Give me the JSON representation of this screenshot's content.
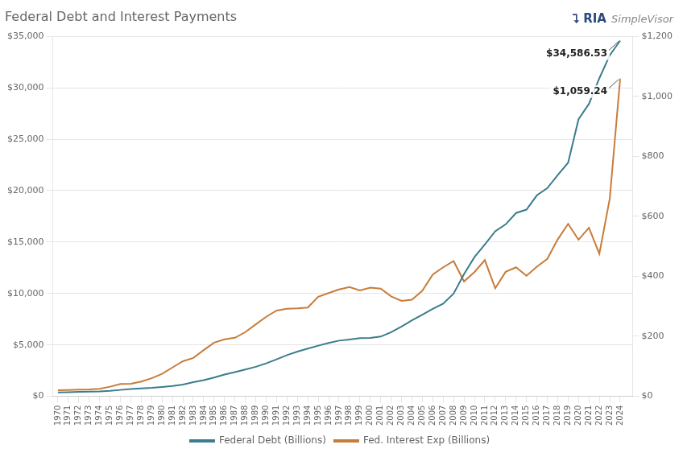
{
  "chart_data": {
    "type": "line",
    "title": "Federal Debt and Interest Payments",
    "x": [
      1970,
      1971,
      1972,
      1973,
      1974,
      1975,
      1976,
      1977,
      1978,
      1979,
      1980,
      1981,
      1982,
      1983,
      1984,
      1985,
      1986,
      1987,
      1988,
      1989,
      1990,
      1991,
      1992,
      1993,
      1994,
      1995,
      1996,
      1997,
      1998,
      1999,
      2000,
      2001,
      2002,
      2003,
      2004,
      2005,
      2006,
      2007,
      2008,
      2009,
      2010,
      2011,
      2012,
      2013,
      2014,
      2015,
      2016,
      2017,
      2018,
      2019,
      2020,
      2021,
      2022,
      2023,
      2024
    ],
    "series": [
      {
        "name": "Federal Debt (Billions)",
        "color": "#3a7d8c",
        "axis": "y",
        "values": [
          370,
          398,
          427,
          458,
          474,
          533,
          620,
          699,
          772,
          828,
          908,
          994,
          1137,
          1371,
          1564,
          1817,
          2120,
          2346,
          2601,
          2868,
          3206,
          3598,
          4002,
          4351,
          4643,
          4921,
          5181,
          5413,
          5526,
          5656,
          5674,
          5807,
          6228,
          6783,
          7379,
          7933,
          8507,
          9008,
          9986,
          11876,
          13528,
          14764,
          16051,
          16719,
          17824,
          18151,
          19540,
          20245,
          21516,
          22719,
          26945,
          28429,
          30928,
          33167,
          34587
        ]
      },
      {
        "name": "Fed. Interest Exp (Billions)",
        "color": "#c87c3a",
        "axis": "y2",
        "values": [
          20,
          21,
          22,
          23,
          25,
          32,
          41,
          42,
          49,
          60,
          75,
          96,
          117,
          128,
          154,
          179,
          190,
          195,
          214,
          240,
          265,
          286,
          292,
          293,
          296,
          332,
          344,
          356,
          364,
          353,
          362,
          359,
          333,
          318,
          322,
          352,
          406,
          430,
          451,
          383,
          414,
          454,
          360,
          415,
          430,
          402,
          432,
          458,
          523,
          575,
          522,
          562,
          475,
          659,
          1059
        ]
      }
    ],
    "xlim": [
      1969.5,
      2025.2
    ],
    "xticks": [
      1970,
      1971,
      1972,
      1973,
      1974,
      1975,
      1976,
      1977,
      1978,
      1979,
      1980,
      1981,
      1982,
      1983,
      1984,
      1985,
      1986,
      1987,
      1988,
      1989,
      1990,
      1991,
      1992,
      1993,
      1994,
      1995,
      1996,
      1997,
      1998,
      1999,
      2000,
      2001,
      2002,
      2003,
      2004,
      2005,
      2006,
      2007,
      2008,
      2009,
      2010,
      2011,
      2012,
      2013,
      2014,
      2015,
      2016,
      2017,
      2018,
      2019,
      2020,
      2021,
      2022,
      2023,
      2024
    ],
    "ylim": [
      0,
      35000
    ],
    "yticks": [
      {
        "value": 0,
        "label": "$0"
      },
      {
        "value": 5000,
        "label": "$5,000"
      },
      {
        "value": 10000,
        "label": "$10,000"
      },
      {
        "value": 15000,
        "label": "$15,000"
      },
      {
        "value": 20000,
        "label": "$20,000"
      },
      {
        "value": 25000,
        "label": "$25,000"
      },
      {
        "value": 30000,
        "label": "$30,000"
      },
      {
        "value": 35000,
        "label": "$35,000"
      }
    ],
    "y2lim": [
      0,
      1200
    ],
    "y2ticks": [
      {
        "value": 0,
        "label": "$0"
      },
      {
        "value": 200,
        "label": "$200"
      },
      {
        "value": 400,
        "label": "$400"
      },
      {
        "value": 600,
        "label": "$600"
      },
      {
        "value": 800,
        "label": "$800"
      },
      {
        "value": 1000,
        "label": "$1,000"
      },
      {
        "value": 1200,
        "label": "$1,200"
      }
    ],
    "grid": true,
    "legend": "bottom",
    "annotations": [
      {
        "text": "$34,586.53",
        "series": "Federal Debt (Billions)",
        "x": 2024
      },
      {
        "text": "$1,059.24",
        "series": "Fed. Interest Exp (Billions)",
        "x": 2024
      },
      {
        "text": "⮧ RIA"
      },
      {
        "text": " SimpleVisor"
      }
    ]
  }
}
